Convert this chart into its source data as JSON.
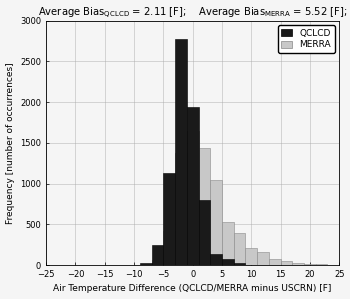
{
  "title_part1": "Average Bias",
  "title_sub1": "QCLCD",
  "title_val1": " = 2.11 [F];",
  "title_part2": "    Average Bias",
  "title_sub2": "MERRA",
  "title_val2": " = 5.52 [F];",
  "xlabel": "Air Temperature Difference (QCLCD/MERRA minus USCRN) [F]",
  "ylabel": "Frequency [number of occurrences]",
  "xlim": [
    -25,
    25
  ],
  "ylim": [
    0,
    3000
  ],
  "yticks": [
    0,
    500,
    1000,
    1500,
    2000,
    2500,
    3000
  ],
  "xticks": [
    -25,
    -20,
    -15,
    -10,
    -5,
    0,
    5,
    10,
    15,
    20,
    25
  ],
  "bin_edges_start": -25,
  "bin_edges_end": 25,
  "bin_width": 2,
  "qclcd_values": [
    0,
    0,
    0,
    0,
    0,
    0,
    0,
    5,
    20,
    240,
    1130,
    2780,
    1940,
    800,
    130,
    70,
    25,
    5,
    2,
    0,
    0,
    0,
    0,
    0,
    0
  ],
  "merra_values": [
    0,
    0,
    0,
    0,
    0,
    0,
    0,
    0,
    0,
    60,
    420,
    1380,
    1650,
    1440,
    1040,
    530,
    390,
    205,
    155,
    80,
    55,
    30,
    15,
    10,
    5
  ],
  "qclcd_color": "#1a1a1a",
  "merra_color": "#c8c8c8",
  "background_color": "#f5f5f5",
  "grid_color": "#aaaaaa",
  "title_fontsize": 7.2,
  "label_fontsize": 6.5,
  "tick_fontsize": 6,
  "legend_fontsize": 6.5
}
